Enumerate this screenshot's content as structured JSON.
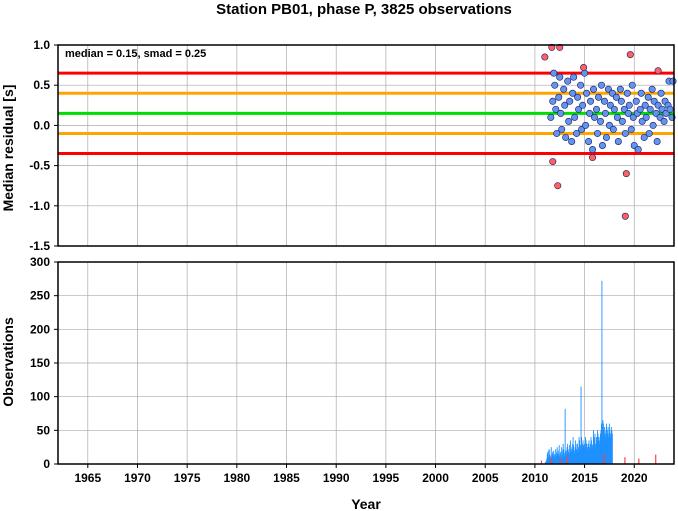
{
  "chart_data": [
    {
      "type": "scatter",
      "title": "Station PB01, phase P, 3825 observations",
      "ylabel": "Median residual [s]",
      "annotation": "median = 0.15, smad = 0.25",
      "xlim": [
        1962,
        2024
      ],
      "ylim": [
        -1.5,
        1.0
      ],
      "yticks": [
        "1.0",
        "0.5",
        "0.0",
        "-0.5",
        "-1.0",
        "-1.5"
      ],
      "ytick_values": [
        1.0,
        0.5,
        0.0,
        -0.5,
        -1.0,
        -1.5
      ],
      "grid": true,
      "reference_lines": [
        {
          "y": 0.65,
          "color": "#ff0000"
        },
        {
          "y": 0.4,
          "color": "#ffa500"
        },
        {
          "y": 0.15,
          "color": "#00dd00"
        },
        {
          "y": -0.1,
          "color": "#ffa500"
        },
        {
          "y": -0.35,
          "color": "#ff0000"
        }
      ],
      "series": [
        {
          "color": "#6495ed",
          "points": [
            [
              2011.6,
              0.1
            ],
            [
              2011.8,
              0.3
            ],
            [
              2011.9,
              0.65
            ],
            [
              2012.0,
              0.5
            ],
            [
              2012.1,
              0.2
            ],
            [
              2012.2,
              -0.1
            ],
            [
              2012.4,
              0.35
            ],
            [
              2012.5,
              0.6
            ],
            [
              2012.6,
              0.15
            ],
            [
              2012.7,
              -0.05
            ],
            [
              2012.9,
              0.45
            ],
            [
              2013.0,
              0.25
            ],
            [
              2013.1,
              -0.15
            ],
            [
              2013.3,
              0.55
            ],
            [
              2013.4,
              0.05
            ],
            [
              2013.5,
              0.3
            ],
            [
              2013.7,
              -0.2
            ],
            [
              2013.8,
              0.4
            ],
            [
              2013.9,
              0.6
            ],
            [
              2014.0,
              0.1
            ],
            [
              2014.2,
              -0.1
            ],
            [
              2014.3,
              0.35
            ],
            [
              2014.4,
              0.2
            ],
            [
              2014.6,
              0.5
            ],
            [
              2014.7,
              -0.05
            ],
            [
              2014.8,
              0.25
            ],
            [
              2015.0,
              0.65
            ],
            [
              2015.1,
              0.0
            ],
            [
              2015.2,
              0.4
            ],
            [
              2015.4,
              -0.2
            ],
            [
              2015.5,
              0.15
            ],
            [
              2015.6,
              0.3
            ],
            [
              2015.8,
              -0.3
            ],
            [
              2015.9,
              0.45
            ],
            [
              2016.0,
              0.1
            ],
            [
              2016.2,
              0.2
            ],
            [
              2016.3,
              -0.1
            ],
            [
              2016.4,
              0.35
            ],
            [
              2016.6,
              0.05
            ],
            [
              2016.7,
              0.5
            ],
            [
              2016.8,
              -0.25
            ],
            [
              2017.0,
              0.3
            ],
            [
              2017.1,
              0.15
            ],
            [
              2017.2,
              -0.15
            ],
            [
              2017.4,
              0.45
            ],
            [
              2017.5,
              0.0
            ],
            [
              2017.6,
              0.25
            ],
            [
              2017.8,
              0.4
            ],
            [
              2017.9,
              -0.05
            ],
            [
              2018.0,
              0.2
            ],
            [
              2018.2,
              0.35
            ],
            [
              2018.3,
              0.1
            ],
            [
              2018.4,
              -0.2
            ],
            [
              2018.6,
              0.45
            ],
            [
              2018.7,
              0.3
            ],
            [
              2018.8,
              0.05
            ],
            [
              2019.0,
              0.2
            ],
            [
              2019.1,
              -0.1
            ],
            [
              2019.3,
              0.4
            ],
            [
              2019.4,
              0.15
            ],
            [
              2019.5,
              0.25
            ],
            [
              2019.7,
              -0.05
            ],
            [
              2019.8,
              0.5
            ],
            [
              2019.9,
              0.1
            ],
            [
              2020.0,
              -0.25
            ],
            [
              2020.2,
              0.3
            ],
            [
              2020.3,
              0.15
            ],
            [
              2020.4,
              -0.3
            ],
            [
              2020.6,
              0.2
            ],
            [
              2020.7,
              0.4
            ],
            [
              2020.8,
              0.05
            ],
            [
              2021.0,
              -0.15
            ],
            [
              2021.1,
              0.25
            ],
            [
              2021.2,
              0.1
            ],
            [
              2021.4,
              0.35
            ],
            [
              2021.5,
              -0.1
            ],
            [
              2021.6,
              0.2
            ],
            [
              2021.8,
              0.45
            ],
            [
              2021.9,
              0.0
            ],
            [
              2022.0,
              0.3
            ],
            [
              2022.2,
              0.15
            ],
            [
              2022.3,
              -0.2
            ],
            [
              2022.4,
              0.25
            ],
            [
              2022.6,
              0.1
            ],
            [
              2022.7,
              0.4
            ],
            [
              2022.8,
              0.2
            ],
            [
              2023.0,
              0.05
            ],
            [
              2023.1,
              0.3
            ],
            [
              2023.2,
              0.15
            ],
            [
              2023.4,
              0.25
            ],
            [
              2023.5,
              0.55
            ],
            [
              2023.6,
              0.2
            ],
            [
              2023.8,
              0.1
            ],
            [
              2023.9,
              0.55
            ]
          ]
        },
        {
          "color": "#ff6060",
          "points": [
            [
              2011.0,
              0.85
            ],
            [
              2011.7,
              0.97
            ],
            [
              2012.5,
              0.97
            ],
            [
              2011.8,
              -0.45
            ],
            [
              2012.3,
              -0.75
            ],
            [
              2014.9,
              0.72
            ],
            [
              2015.8,
              -0.4
            ],
            [
              2019.2,
              -0.6
            ],
            [
              2019.6,
              0.88
            ],
            [
              2019.1,
              -1.13
            ],
            [
              2022.4,
              0.68
            ]
          ]
        }
      ]
    },
    {
      "type": "bar",
      "xlabel": "Year",
      "ylabel": "Observations",
      "xlim": [
        1962,
        2024
      ],
      "ylim": [
        0,
        300
      ],
      "xticks": [
        "1965",
        "1970",
        "1975",
        "1980",
        "1985",
        "1990",
        "1995",
        "2000",
        "2005",
        "2010",
        "2015",
        "2020"
      ],
      "xtick_values": [
        1965,
        1970,
        1975,
        1980,
        1985,
        1990,
        1995,
        2000,
        2005,
        2010,
        2015,
        2020
      ],
      "yticks": [
        "300",
        "250",
        "200",
        "150",
        "100",
        "50",
        "0"
      ],
      "ytick_values": [
        300,
        250,
        200,
        150,
        100,
        50,
        0
      ],
      "grid": true,
      "bar_color": "#1e90ff",
      "outlier_color": "#ff4040",
      "series_values": {
        "start_year": 2011.0,
        "step": 0.05,
        "values": [
          2,
          3,
          5,
          8,
          15,
          18,
          10,
          20,
          22,
          14,
          12,
          8,
          25,
          10,
          15,
          18,
          12,
          20,
          15,
          10,
          14,
          22,
          18,
          12,
          25,
          16,
          14,
          20,
          28,
          12,
          15,
          18,
          10,
          25,
          20,
          14,
          30,
          22,
          16,
          12,
          82,
          18,
          20,
          14,
          25,
          30,
          22,
          18,
          15,
          28,
          20,
          35,
          25,
          18,
          22,
          30,
          40,
          28,
          20,
          15,
          25,
          35,
          30,
          22,
          18,
          30,
          25,
          20,
          40,
          35,
          28,
          22,
          115,
          40,
          30,
          25,
          35,
          28,
          22,
          30,
          25,
          40,
          35,
          30,
          25,
          20,
          30,
          28,
          35,
          25,
          22,
          30,
          40,
          35,
          28,
          25,
          30,
          50,
          40,
          35,
          45,
          30,
          25,
          40,
          35,
          50,
          45,
          40,
          35,
          30,
          40,
          45,
          50,
          60,
          272,
          55,
          65,
          60,
          50,
          55,
          45,
          40,
          50,
          60,
          55,
          50,
          45,
          40,
          55,
          60,
          50,
          45,
          40,
          55,
          50,
          45
        ]
      },
      "outliers": [
        [
          2010.6,
          5
        ],
        [
          2011.6,
          10
        ],
        [
          2012.5,
          8
        ],
        [
          2013.2,
          12
        ],
        [
          2016.9,
          15
        ],
        [
          2019.0,
          10
        ],
        [
          2020.4,
          8
        ],
        [
          2022.1,
          14
        ]
      ]
    }
  ]
}
